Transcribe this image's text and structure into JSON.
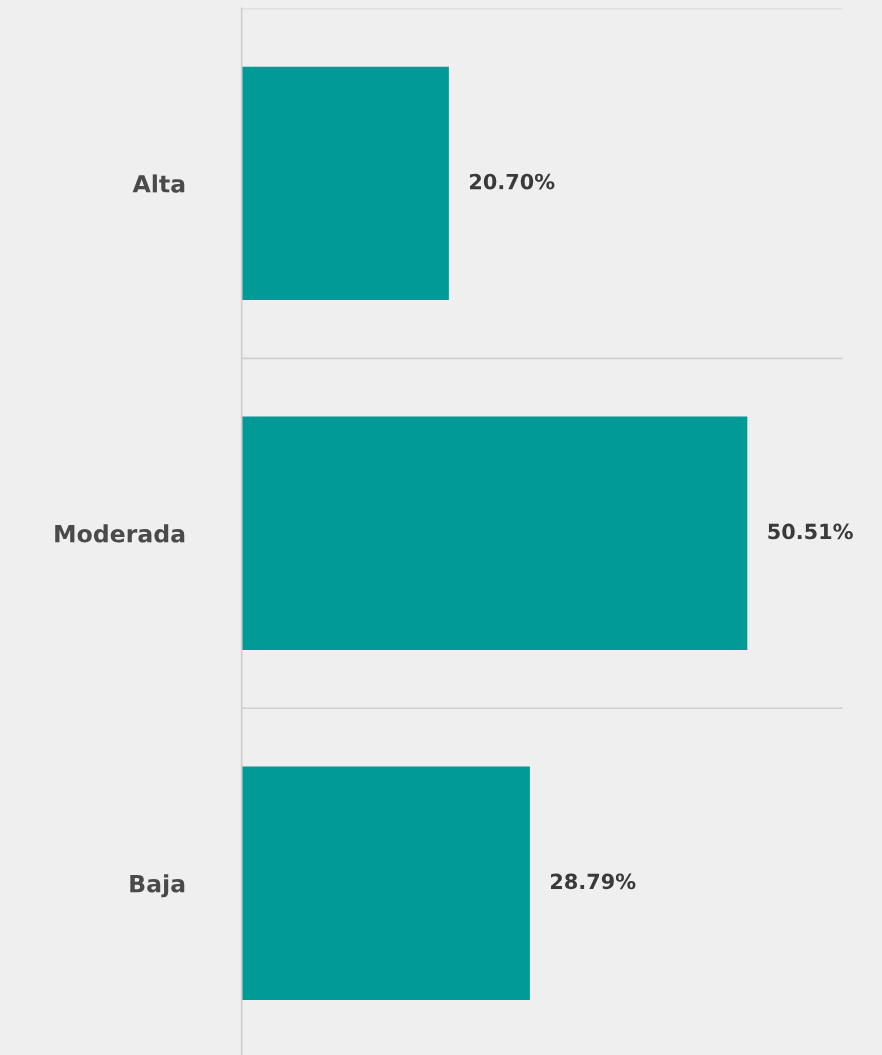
{
  "chart_data": {
    "type": "bar",
    "orientation": "horizontal",
    "categories": [
      "Alta",
      "Moderada",
      "Baja"
    ],
    "values": [
      20.7,
      50.51,
      28.79
    ],
    "value_labels": [
      "20.70%",
      "50.51%",
      "28.79%"
    ],
    "color": "#009b96",
    "xlim": [
      0,
      60
    ],
    "grid": "y",
    "tick_labels": "y"
  }
}
